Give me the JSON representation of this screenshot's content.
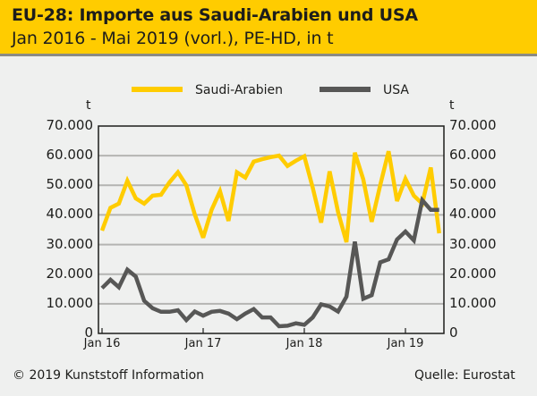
{
  "header": {
    "title": "EU-28: Importe aus Saudi-Arabien und USA",
    "subtitle": "Jan 2016 - Mai 2019 (vorl.), PE-HD, in t"
  },
  "footer": {
    "copyright": "© 2019 Kunststoff Information",
    "source": "Quelle: Eurostat"
  },
  "colors": {
    "header": "#ffcc00",
    "saudi": "#ffcc00",
    "usa": "#575756"
  },
  "chart_data": {
    "type": "line",
    "title": "EU-28: Importe aus Saudi-Arabien und USA",
    "subtitle": "Jan 2016 - Mai 2019 (vorl.), PE-HD, in t",
    "ylabel_left": "t",
    "ylabel_right": "t",
    "ylim": [
      0,
      70000
    ],
    "yticks": [
      "0",
      "10.000",
      "20.000",
      "30.000",
      "40.000",
      "50.000",
      "60.000",
      "70.000"
    ],
    "ytick_values": [
      0,
      10000,
      20000,
      30000,
      40000,
      50000,
      60000,
      70000
    ],
    "xticks": [
      "Jan 16",
      "Jan 17",
      "Jan 18",
      "Jan 19"
    ],
    "xtick_months": [
      0,
      12,
      24,
      36
    ],
    "x_start": "Jan 2016",
    "months": 41,
    "grid": true,
    "legend": "top",
    "series": [
      {
        "name": "Saudi-Arabien",
        "color": "#ffcc00",
        "values": [
          34700,
          42400,
          43800,
          51500,
          45600,
          43800,
          46500,
          46800,
          51000,
          54400,
          50000,
          40200,
          32300,
          41700,
          48000,
          38000,
          54400,
          52600,
          58000,
          58800,
          59500,
          60000,
          56500,
          58300,
          59800,
          49200,
          37400,
          54700,
          41000,
          30800,
          61000,
          52000,
          37700,
          50000,
          61500,
          44700,
          52200,
          46500,
          43800,
          56000,
          33800
        ]
      },
      {
        "name": "USA",
        "color": "#575756",
        "values": [
          15300,
          18100,
          15600,
          21500,
          19200,
          11000,
          8500,
          7300,
          7300,
          7800,
          4500,
          7400,
          6000,
          7300,
          7600,
          6700,
          4800,
          6700,
          8200,
          5400,
          5400,
          2400,
          2600,
          3400,
          2900,
          5400,
          9800,
          9100,
          7400,
          12400,
          31000,
          11700,
          12900,
          24000,
          25000,
          31700,
          34400,
          31400,
          45000,
          41700,
          41700
        ]
      }
    ]
  }
}
